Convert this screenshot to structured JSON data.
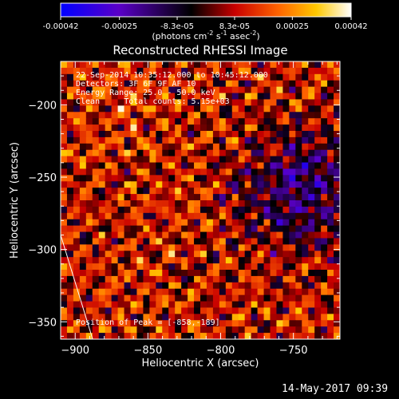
{
  "chart_data": {
    "type": "heatmap",
    "title": "Reconstructed RHESSI Image",
    "xlabel": "Heliocentric X (arcsec)",
    "ylabel": "Heliocentric Y (arcsec)",
    "xlim": [
      -910,
      -718
    ],
    "ylim": [
      -362,
      -170
    ],
    "x_ticks": [
      -900,
      -850,
      -800,
      -750
    ],
    "x_tick_labels": [
      "−900",
      "−850",
      "−800",
      "−750"
    ],
    "y_ticks": [
      -350,
      -300,
      -250,
      -200
    ],
    "y_tick_labels": [
      "−350",
      "−300",
      "−250",
      "−200"
    ],
    "colorbar": {
      "range": [
        -0.00042,
        0.00042
      ],
      "tick_values": [
        -0.00042,
        -0.00025,
        -8.3e-05,
        8.3e-05,
        0.00025,
        0.00042
      ],
      "tick_labels": [
        "-0.00042",
        "-0.00025",
        "-8.3e-05",
        "8.3e-05",
        "0.00025",
        "0.00042"
      ],
      "unit_label": "(photons cm",
      "unit_sup1": "-2",
      "unit_mid": " s",
      "unit_sup2": "-1",
      "unit_end": " asec",
      "unit_sup3": "-2",
      "unit_close": ")",
      "colors": [
        "#0000ff",
        "#5a00c8",
        "#000000",
        "#c80000",
        "#ff6400",
        "#ffc800",
        "#ffffff"
      ]
    },
    "annotations": [
      "22-Sep-2014 10:35:12.000 to 10:45:12.000",
      "Detectors: 3F 6F 9F AF 10",
      "Energy Range: 25.0 - 50.0 keV",
      "Clean     Total counts: 5.15e+03"
    ],
    "peak_label": "Position of Peak = [-858,-189]",
    "peak": [
      -858,
      -189
    ],
    "limb_line": [
      [
        -910,
        -290
      ],
      [
        -888,
        -362
      ]
    ],
    "grid": false,
    "legend": "none"
  },
  "timestamp": "14-May-2017 09:39"
}
